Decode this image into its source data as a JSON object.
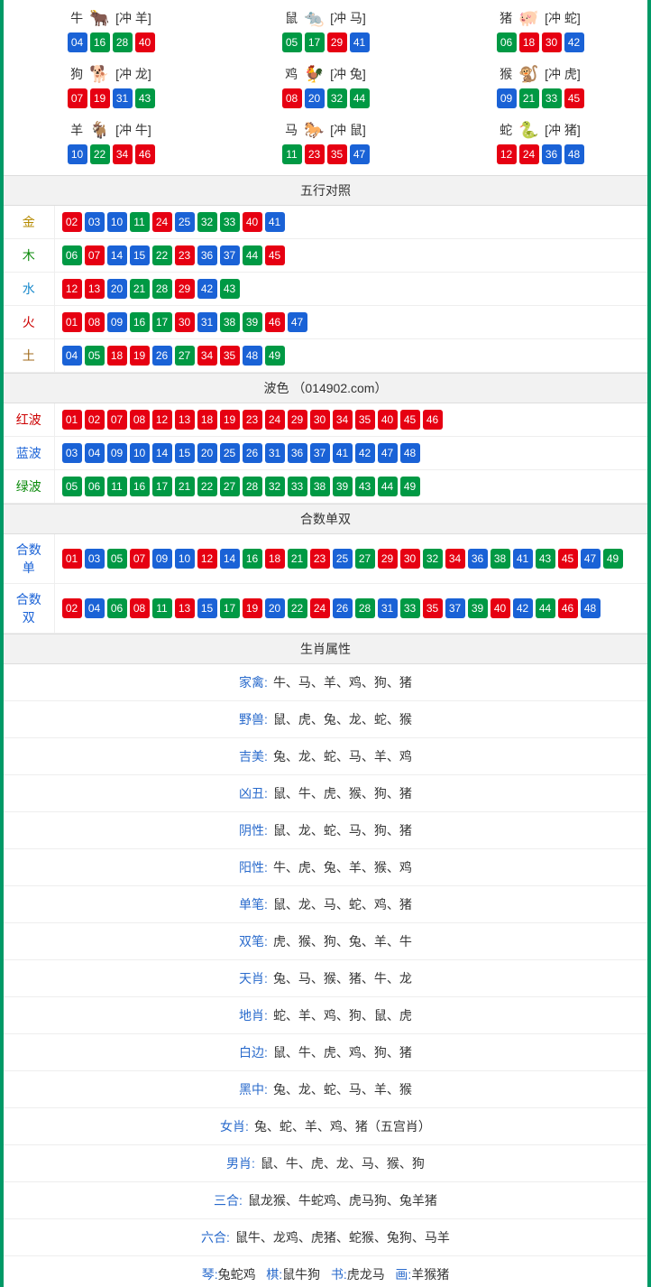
{
  "colors": {
    "red": "#e60012",
    "blue": "#1a62d6",
    "green": "#009944",
    "accent_border": "#009966",
    "link_blue": "#2a6bcc",
    "label_gold": "#b58a00",
    "label_green": "#0a8a0a",
    "label_water": "#1a8acc",
    "label_fire": "#cc0000",
    "label_earth": "#a06a1a",
    "label_redwave": "#cc0000",
    "label_bluewave": "#1a62d6",
    "label_greenwave": "#0a8a0a"
  },
  "ball_color_map_note": "red=01,02,07,08,12,13,18,19,23,24,29,30,34,35,40,45,46; blue=03,04,09,10,14,15,20,25,26,31,36,37,41,42,47,48; green=05,06,11,16,17,21,22,27,28,32,33,38,39,43,44,49",
  "zodiac_grid": [
    {
      "name": "牛",
      "icon_emoji": "🐂",
      "icon_color": "#cc3333",
      "clash": "[冲 羊]",
      "balls": [
        "04",
        "16",
        "28",
        "40"
      ]
    },
    {
      "name": "鼠",
      "icon_emoji": "🐀",
      "icon_color": "#6fbedf",
      "clash": "[冲 马]",
      "balls": [
        "05",
        "17",
        "29",
        "41"
      ]
    },
    {
      "name": "猪",
      "icon_emoji": "🐖",
      "icon_color": "#e89ab0",
      "clash": "[冲 蛇]",
      "balls": [
        "06",
        "18",
        "30",
        "42"
      ]
    },
    {
      "name": "狗",
      "icon_emoji": "🐕",
      "icon_color": "#8fb7e6",
      "clash": "[冲 龙]",
      "balls": [
        "07",
        "19",
        "31",
        "43"
      ]
    },
    {
      "name": "鸡",
      "icon_emoji": "🐓",
      "icon_color": "#e6b23a",
      "clash": "[冲 兔]",
      "balls": [
        "08",
        "20",
        "32",
        "44"
      ]
    },
    {
      "name": "猴",
      "icon_emoji": "🐒",
      "icon_color": "#d98a2a",
      "clash": "[冲 虎]",
      "balls": [
        "09",
        "21",
        "33",
        "45"
      ]
    },
    {
      "name": "羊",
      "icon_emoji": "🐐",
      "icon_color": "#d9b23a",
      "clash": "[冲 牛]",
      "balls": [
        "10",
        "22",
        "34",
        "46"
      ]
    },
    {
      "name": "马",
      "icon_emoji": "🐎",
      "icon_color": "#cc3333",
      "clash": "[冲 鼠]",
      "balls": [
        "11",
        "23",
        "35",
        "47"
      ]
    },
    {
      "name": "蛇",
      "icon_emoji": "🐍",
      "icon_color": "#2a8a2a",
      "clash": "[冲 猪]",
      "balls": [
        "12",
        "24",
        "36",
        "48"
      ]
    }
  ],
  "sections": {
    "wuxing": {
      "title": "五行对照",
      "rows": [
        {
          "label": "金",
          "label_color": "#b58a00",
          "balls": [
            "02",
            "03",
            "10",
            "11",
            "24",
            "25",
            "32",
            "33",
            "40",
            "41"
          ]
        },
        {
          "label": "木",
          "label_color": "#0a8a0a",
          "balls": [
            "06",
            "07",
            "14",
            "15",
            "22",
            "23",
            "36",
            "37",
            "44",
            "45"
          ]
        },
        {
          "label": "水",
          "label_color": "#1a8acc",
          "balls": [
            "12",
            "13",
            "20",
            "21",
            "28",
            "29",
            "42",
            "43"
          ]
        },
        {
          "label": "火",
          "label_color": "#cc0000",
          "balls": [
            "01",
            "08",
            "09",
            "16",
            "17",
            "30",
            "31",
            "38",
            "39",
            "46",
            "47"
          ]
        },
        {
          "label": "土",
          "label_color": "#a06a1a",
          "balls": [
            "04",
            "05",
            "18",
            "19",
            "26",
            "27",
            "34",
            "35",
            "48",
            "49"
          ]
        }
      ]
    },
    "bose": {
      "title": "波色 （014902.com）",
      "rows": [
        {
          "label": "红波",
          "label_color": "#cc0000",
          "balls": [
            "01",
            "02",
            "07",
            "08",
            "12",
            "13",
            "18",
            "19",
            "23",
            "24",
            "29",
            "30",
            "34",
            "35",
            "40",
            "45",
            "46"
          ]
        },
        {
          "label": "蓝波",
          "label_color": "#1a62d6",
          "balls": [
            "03",
            "04",
            "09",
            "10",
            "14",
            "15",
            "20",
            "25",
            "26",
            "31",
            "36",
            "37",
            "41",
            "42",
            "47",
            "48"
          ]
        },
        {
          "label": "绿波",
          "label_color": "#0a8a0a",
          "balls": [
            "05",
            "06",
            "11",
            "16",
            "17",
            "21",
            "22",
            "27",
            "28",
            "32",
            "33",
            "38",
            "39",
            "43",
            "44",
            "49"
          ]
        }
      ]
    },
    "heshu": {
      "title": "合数单双",
      "rows": [
        {
          "label": "合数单",
          "label_color": "#1a62d6",
          "balls": [
            "01",
            "03",
            "05",
            "07",
            "09",
            "10",
            "12",
            "14",
            "16",
            "18",
            "21",
            "23",
            "25",
            "27",
            "29",
            "30",
            "32",
            "34",
            "36",
            "38",
            "41",
            "43",
            "45",
            "47",
            "49"
          ]
        },
        {
          "label": "合数双",
          "label_color": "#1a62d6",
          "balls": [
            "02",
            "04",
            "06",
            "08",
            "11",
            "13",
            "15",
            "17",
            "19",
            "20",
            "22",
            "24",
            "26",
            "28",
            "31",
            "33",
            "35",
            "37",
            "39",
            "40",
            "42",
            "44",
            "46",
            "48"
          ]
        }
      ]
    }
  },
  "attributes": {
    "title": "生肖属性",
    "rows": [
      {
        "label": "家禽:",
        "value": "牛、马、羊、鸡、狗、猪"
      },
      {
        "label": "野兽:",
        "value": "鼠、虎、兔、龙、蛇、猴"
      },
      {
        "label": "吉美:",
        "value": "兔、龙、蛇、马、羊、鸡"
      },
      {
        "label": "凶丑:",
        "value": "鼠、牛、虎、猴、狗、猪"
      },
      {
        "label": "阴性:",
        "value": "鼠、龙、蛇、马、狗、猪"
      },
      {
        "label": "阳性:",
        "value": "牛、虎、兔、羊、猴、鸡"
      },
      {
        "label": "单笔:",
        "value": "鼠、龙、马、蛇、鸡、猪"
      },
      {
        "label": "双笔:",
        "value": "虎、猴、狗、兔、羊、牛"
      },
      {
        "label": "天肖:",
        "value": "兔、马、猴、猪、牛、龙"
      },
      {
        "label": "地肖:",
        "value": "蛇、羊、鸡、狗、鼠、虎"
      },
      {
        "label": "白边:",
        "value": "鼠、牛、虎、鸡、狗、猪"
      },
      {
        "label": "黑中:",
        "value": "兔、龙、蛇、马、羊、猴"
      },
      {
        "label": "女肖:",
        "value": "兔、蛇、羊、鸡、猪（五宫肖）"
      },
      {
        "label": "男肖:",
        "value": "鼠、牛、虎、龙、马、猴、狗"
      },
      {
        "label": "三合:",
        "value": "鼠龙猴、牛蛇鸡、虎马狗、兔羊猪"
      },
      {
        "label": "六合:",
        "value": "鼠牛、龙鸡、虎猪、蛇猴、兔狗、马羊"
      }
    ]
  },
  "bottom_line": {
    "items": [
      {
        "label": "琴:",
        "value": "兔蛇鸡"
      },
      {
        "label": "棋:",
        "value": "鼠牛狗"
      },
      {
        "label": "书:",
        "value": "虎龙马"
      },
      {
        "label": "画:",
        "value": "羊猴猪"
      }
    ]
  }
}
